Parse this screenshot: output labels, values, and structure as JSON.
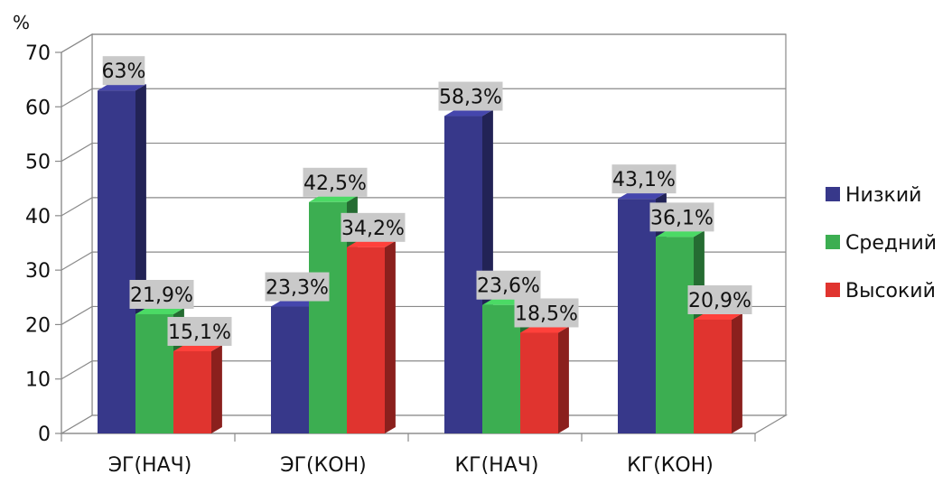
{
  "chart_data": {
    "type": "bar",
    "ylabel": "%",
    "ylim": [
      0,
      70
    ],
    "yticks": [
      "0",
      "10",
      "20",
      "30",
      "40",
      "50",
      "60",
      "70"
    ],
    "grid": true,
    "legend_position": "right",
    "categories": [
      "ЭГ(НАЧ)",
      "ЭГ(КОН)",
      "КГ(НАЧ)",
      "КГ(КОН)"
    ],
    "series": [
      {
        "name": "Низкий",
        "color": "#37388A",
        "values": [
          63,
          23.3,
          58.3,
          43.1
        ],
        "labels": [
          "63%",
          "23,3%",
          "58,3%",
          "43,1%"
        ]
      },
      {
        "name": "Средний",
        "color": "#3CAE51",
        "values": [
          21.9,
          42.5,
          23.6,
          36.1
        ],
        "labels": [
          "21,9%",
          "42,5%",
          "23,6%",
          "36,1%"
        ]
      },
      {
        "name": "Высокий",
        "color": "#E0342F",
        "values": [
          15.1,
          34.2,
          18.5,
          20.9
        ],
        "labels": [
          "15,1%",
          "34,2%",
          "18,5%",
          "20,9%"
        ]
      }
    ]
  }
}
